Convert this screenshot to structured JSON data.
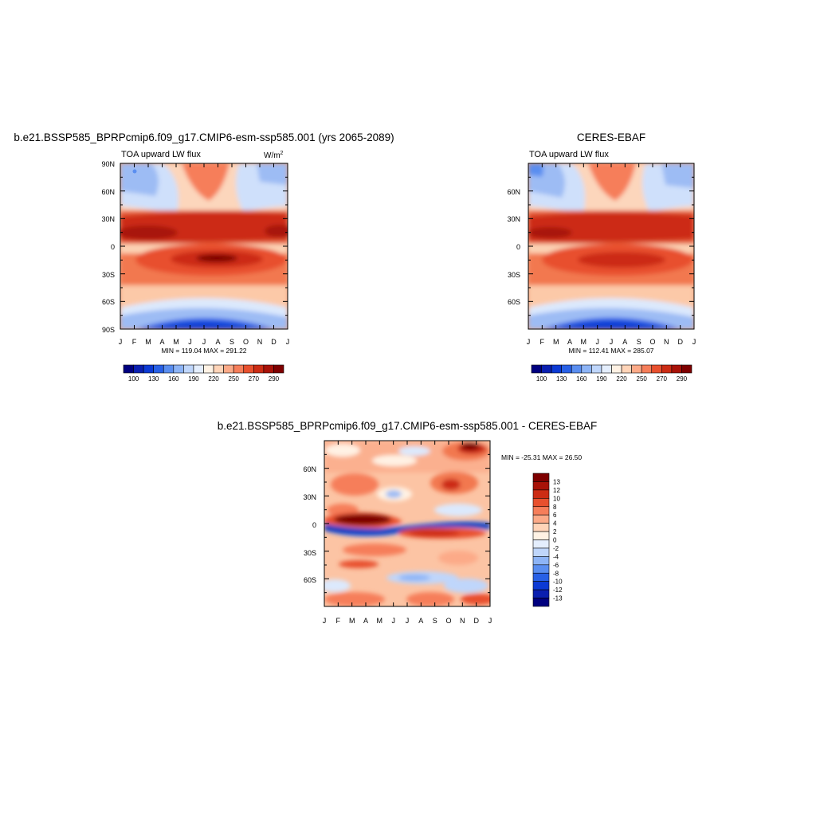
{
  "colors": {
    "abs_levels": [
      "#00007f",
      "#0a1fb0",
      "#0c3ad4",
      "#2860e6",
      "#5a8ef0",
      "#8db4f6",
      "#bfd6fb",
      "#e4eefd",
      "#fff2e4",
      "#ffd4b8",
      "#fcaa88",
      "#f67e5a",
      "#e8502e",
      "#cc2c14",
      "#a81208",
      "#7e0000"
    ],
    "diff_levels": [
      "#00007f",
      "#0a1fb0",
      "#0c3ad4",
      "#2860e6",
      "#5a8ef0",
      "#8db4f6",
      "#bfd6fb",
      "#e4eefd",
      "#fff2e4",
      "#ffd4b8",
      "#fcaa88",
      "#f67e5a",
      "#e8502e",
      "#cc2c14",
      "#a81208",
      "#7e0000"
    ]
  },
  "panels": {
    "model": {
      "title": "b.e21.BSSP585_BPRPcmip6.f09_g17.CMIP6-esm-ssp585.001 (yrs 2065-2089)",
      "left_label": "TOA upward LW flux",
      "units_base": "W/m",
      "units_sup": "2",
      "y_ticks": [
        "90N",
        "60N",
        "30N",
        "0",
        "30S",
        "60S",
        "90S"
      ],
      "x_ticks": [
        "J",
        "F",
        "M",
        "A",
        "M",
        "J",
        "J",
        "A",
        "S",
        "O",
        "N",
        "D",
        "J"
      ],
      "stats": "MIN = 119.04 MAX = 291.22",
      "colorbar_labels": [
        "100",
        "130",
        "160",
        "190",
        "220",
        "250",
        "270",
        "290"
      ]
    },
    "obs": {
      "title": "CERES-EBAF",
      "left_label": "TOA upward LW flux",
      "y_ticks": [
        "60N",
        "30N",
        "0",
        "30S",
        "60S"
      ],
      "x_ticks": [
        "J",
        "F",
        "M",
        "A",
        "M",
        "J",
        "J",
        "A",
        "S",
        "O",
        "N",
        "D",
        "J"
      ],
      "stats": "MIN = 112.41 MAX = 285.07",
      "colorbar_labels": [
        "100",
        "130",
        "160",
        "190",
        "220",
        "250",
        "270",
        "290"
      ]
    },
    "diff": {
      "title": "b.e21.BSSP585_BPRPcmip6.f09_g17.CMIP6-esm-ssp585.001 - CERES-EBAF",
      "y_ticks": [
        "60N",
        "30N",
        "0",
        "30S",
        "60S"
      ],
      "x_ticks": [
        "J",
        "F",
        "M",
        "A",
        "M",
        "J",
        "J",
        "A",
        "S",
        "O",
        "N",
        "D",
        "J"
      ],
      "stats": "MIN = -25.31 MAX =  26.50",
      "colorbar_labels": [
        "13",
        "12",
        "10",
        "8",
        "6",
        "4",
        "2",
        "0",
        "-2",
        "-4",
        "-6",
        "-8",
        "-10",
        "-12",
        "-13"
      ]
    }
  },
  "chart_data": [
    {
      "type": "heatmap",
      "title": "b.e21.BSSP585_BPRPcmip6.f09_g17.CMIP6-esm-ssp585.001 (yrs 2065-2089)",
      "variable": "TOA upward LW flux",
      "units": "W/m2",
      "x": [
        "J",
        "F",
        "M",
        "A",
        "M",
        "J",
        "J",
        "A",
        "S",
        "O",
        "N",
        "D",
        "J"
      ],
      "y": [
        "90S",
        "60S",
        "30S",
        "0",
        "30N",
        "60N",
        "90N"
      ],
      "levels": [
        100,
        130,
        160,
        190,
        220,
        250,
        270,
        290
      ],
      "min": 119.04,
      "max": 291.22,
      "features": [
        {
          "month": 7.5,
          "lat": -15,
          "value": 290
        },
        {
          "month": 2.5,
          "lat": 18,
          "value": 290
        },
        {
          "month": 7,
          "lat": -80,
          "value": 125
        },
        {
          "month": 1,
          "lat": 85,
          "value": 170
        }
      ]
    },
    {
      "type": "heatmap",
      "title": "CERES-EBAF",
      "variable": "TOA upward LW flux",
      "x": [
        "J",
        "F",
        "M",
        "A",
        "M",
        "J",
        "J",
        "A",
        "S",
        "O",
        "N",
        "D",
        "J"
      ],
      "y": [
        "60S",
        "30S",
        "0",
        "30N",
        "60N"
      ],
      "levels": [
        100,
        130,
        160,
        190,
        220,
        250,
        270,
        290
      ],
      "min": 112.41,
      "max": 285.07,
      "features": [
        {
          "month": 7.5,
          "lat": -15,
          "value": 278
        },
        {
          "month": 2,
          "lat": 18,
          "value": 278
        },
        {
          "month": 7,
          "lat": -80,
          "value": 118
        }
      ]
    },
    {
      "type": "heatmap",
      "title": "b.e21.BSSP585_BPRPcmip6.f09_g17.CMIP6-esm-ssp585.001 - CERES-EBAF",
      "x": [
        "J",
        "F",
        "M",
        "A",
        "M",
        "J",
        "J",
        "A",
        "S",
        "O",
        "N",
        "D",
        "J"
      ],
      "y": [
        "60S",
        "30S",
        "0",
        "30N",
        "60N"
      ],
      "levels": [
        -13,
        -12,
        -10,
        -8,
        -6,
        -4,
        -2,
        0,
        2,
        4,
        6,
        8,
        10,
        12,
        13
      ],
      "min": -25.31,
      "max": 26.5,
      "features": [
        {
          "month": 3.5,
          "lat": 8,
          "value": 14
        },
        {
          "month": 11,
          "lat": 80,
          "value": 14
        },
        {
          "month": 6,
          "lat": 0,
          "value": -14
        },
        {
          "month": 10,
          "lat": 43,
          "value": 12
        },
        {
          "month": 9,
          "lat": -8,
          "value": 10
        },
        {
          "month": 6,
          "lat": -55,
          "value": -6
        }
      ]
    }
  ]
}
